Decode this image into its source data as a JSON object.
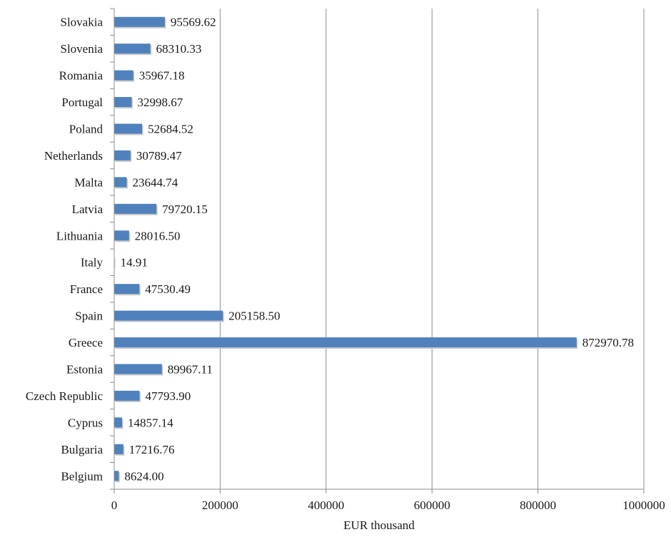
{
  "chart_data": {
    "type": "bar",
    "orientation": "horizontal",
    "categories": [
      "Slovakia",
      "Slovenia",
      "Romania",
      "Portugal",
      "Poland",
      "Netherlands",
      "Malta",
      "Latvia",
      "Lithuania",
      "Italy",
      "France",
      "Spain",
      "Greece",
      "Estonia",
      "Czech Republic",
      "Cyprus",
      "Bulgaria",
      "Belgium"
    ],
    "values": [
      95569.62,
      68310.33,
      35967.18,
      32998.67,
      52684.52,
      30789.47,
      23644.74,
      79720.15,
      28016.5,
      14.91,
      47530.49,
      205158.5,
      872970.78,
      89967.11,
      47793.9,
      14857.14,
      17216.76,
      8624.0
    ],
    "data_labels": [
      "95569.62",
      "68310.33",
      "35967.18",
      "32998.67",
      "52684.52",
      "30789.47",
      "23644.74",
      "79720.15",
      "28016.50",
      "14.91",
      "47530.49",
      "205158.50",
      "872970.78",
      "89967.11",
      "47793.90",
      "14857.14",
      "17216.76",
      "8624.00"
    ],
    "xlabel": "EUR thousand",
    "ylabel": "",
    "title": "",
    "xlim": [
      0,
      1000000
    ],
    "xticks": [
      0,
      200000,
      400000,
      600000,
      800000,
      1000000
    ],
    "xtick_labels": [
      "0",
      "200000",
      "400000",
      "600000",
      "800000",
      "1000000"
    ],
    "grid": "vertical",
    "bar_color": "#4f81bd",
    "grid_color": "#8c8c8c",
    "axis_color": "#8c8c8c"
  }
}
